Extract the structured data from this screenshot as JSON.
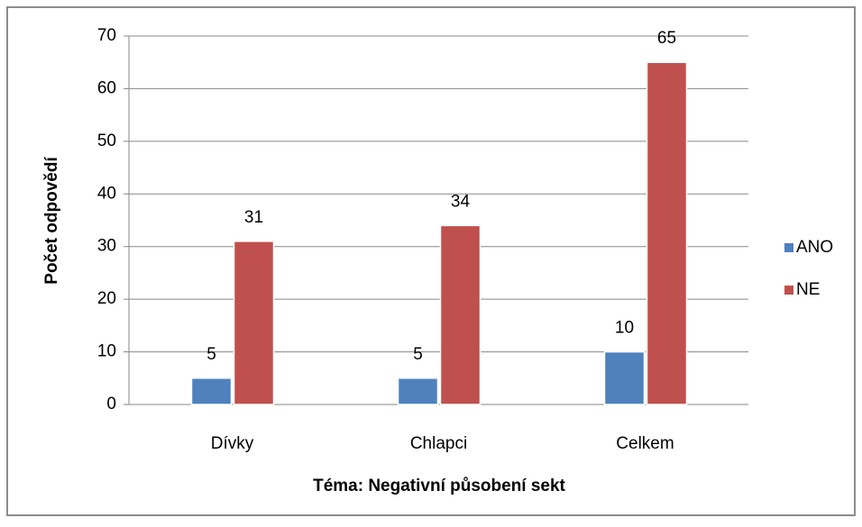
{
  "chart_data": {
    "type": "bar",
    "categories": [
      "Dívky",
      "Chlapci",
      "Celkem"
    ],
    "series": [
      {
        "name": "ANO",
        "color": "#4f81bd",
        "values": [
          5,
          5,
          10
        ]
      },
      {
        "name": "NE",
        "color": "#c0504d",
        "values": [
          31,
          34,
          65
        ]
      }
    ],
    "ylim": [
      0,
      70
    ],
    "yticks": [
      0,
      10,
      20,
      30,
      40,
      50,
      60,
      70
    ],
    "grid": true,
    "y_label": "Počet odpovědí",
    "x_label": "Téma: Negativní působení sekt",
    "legend": "right"
  }
}
